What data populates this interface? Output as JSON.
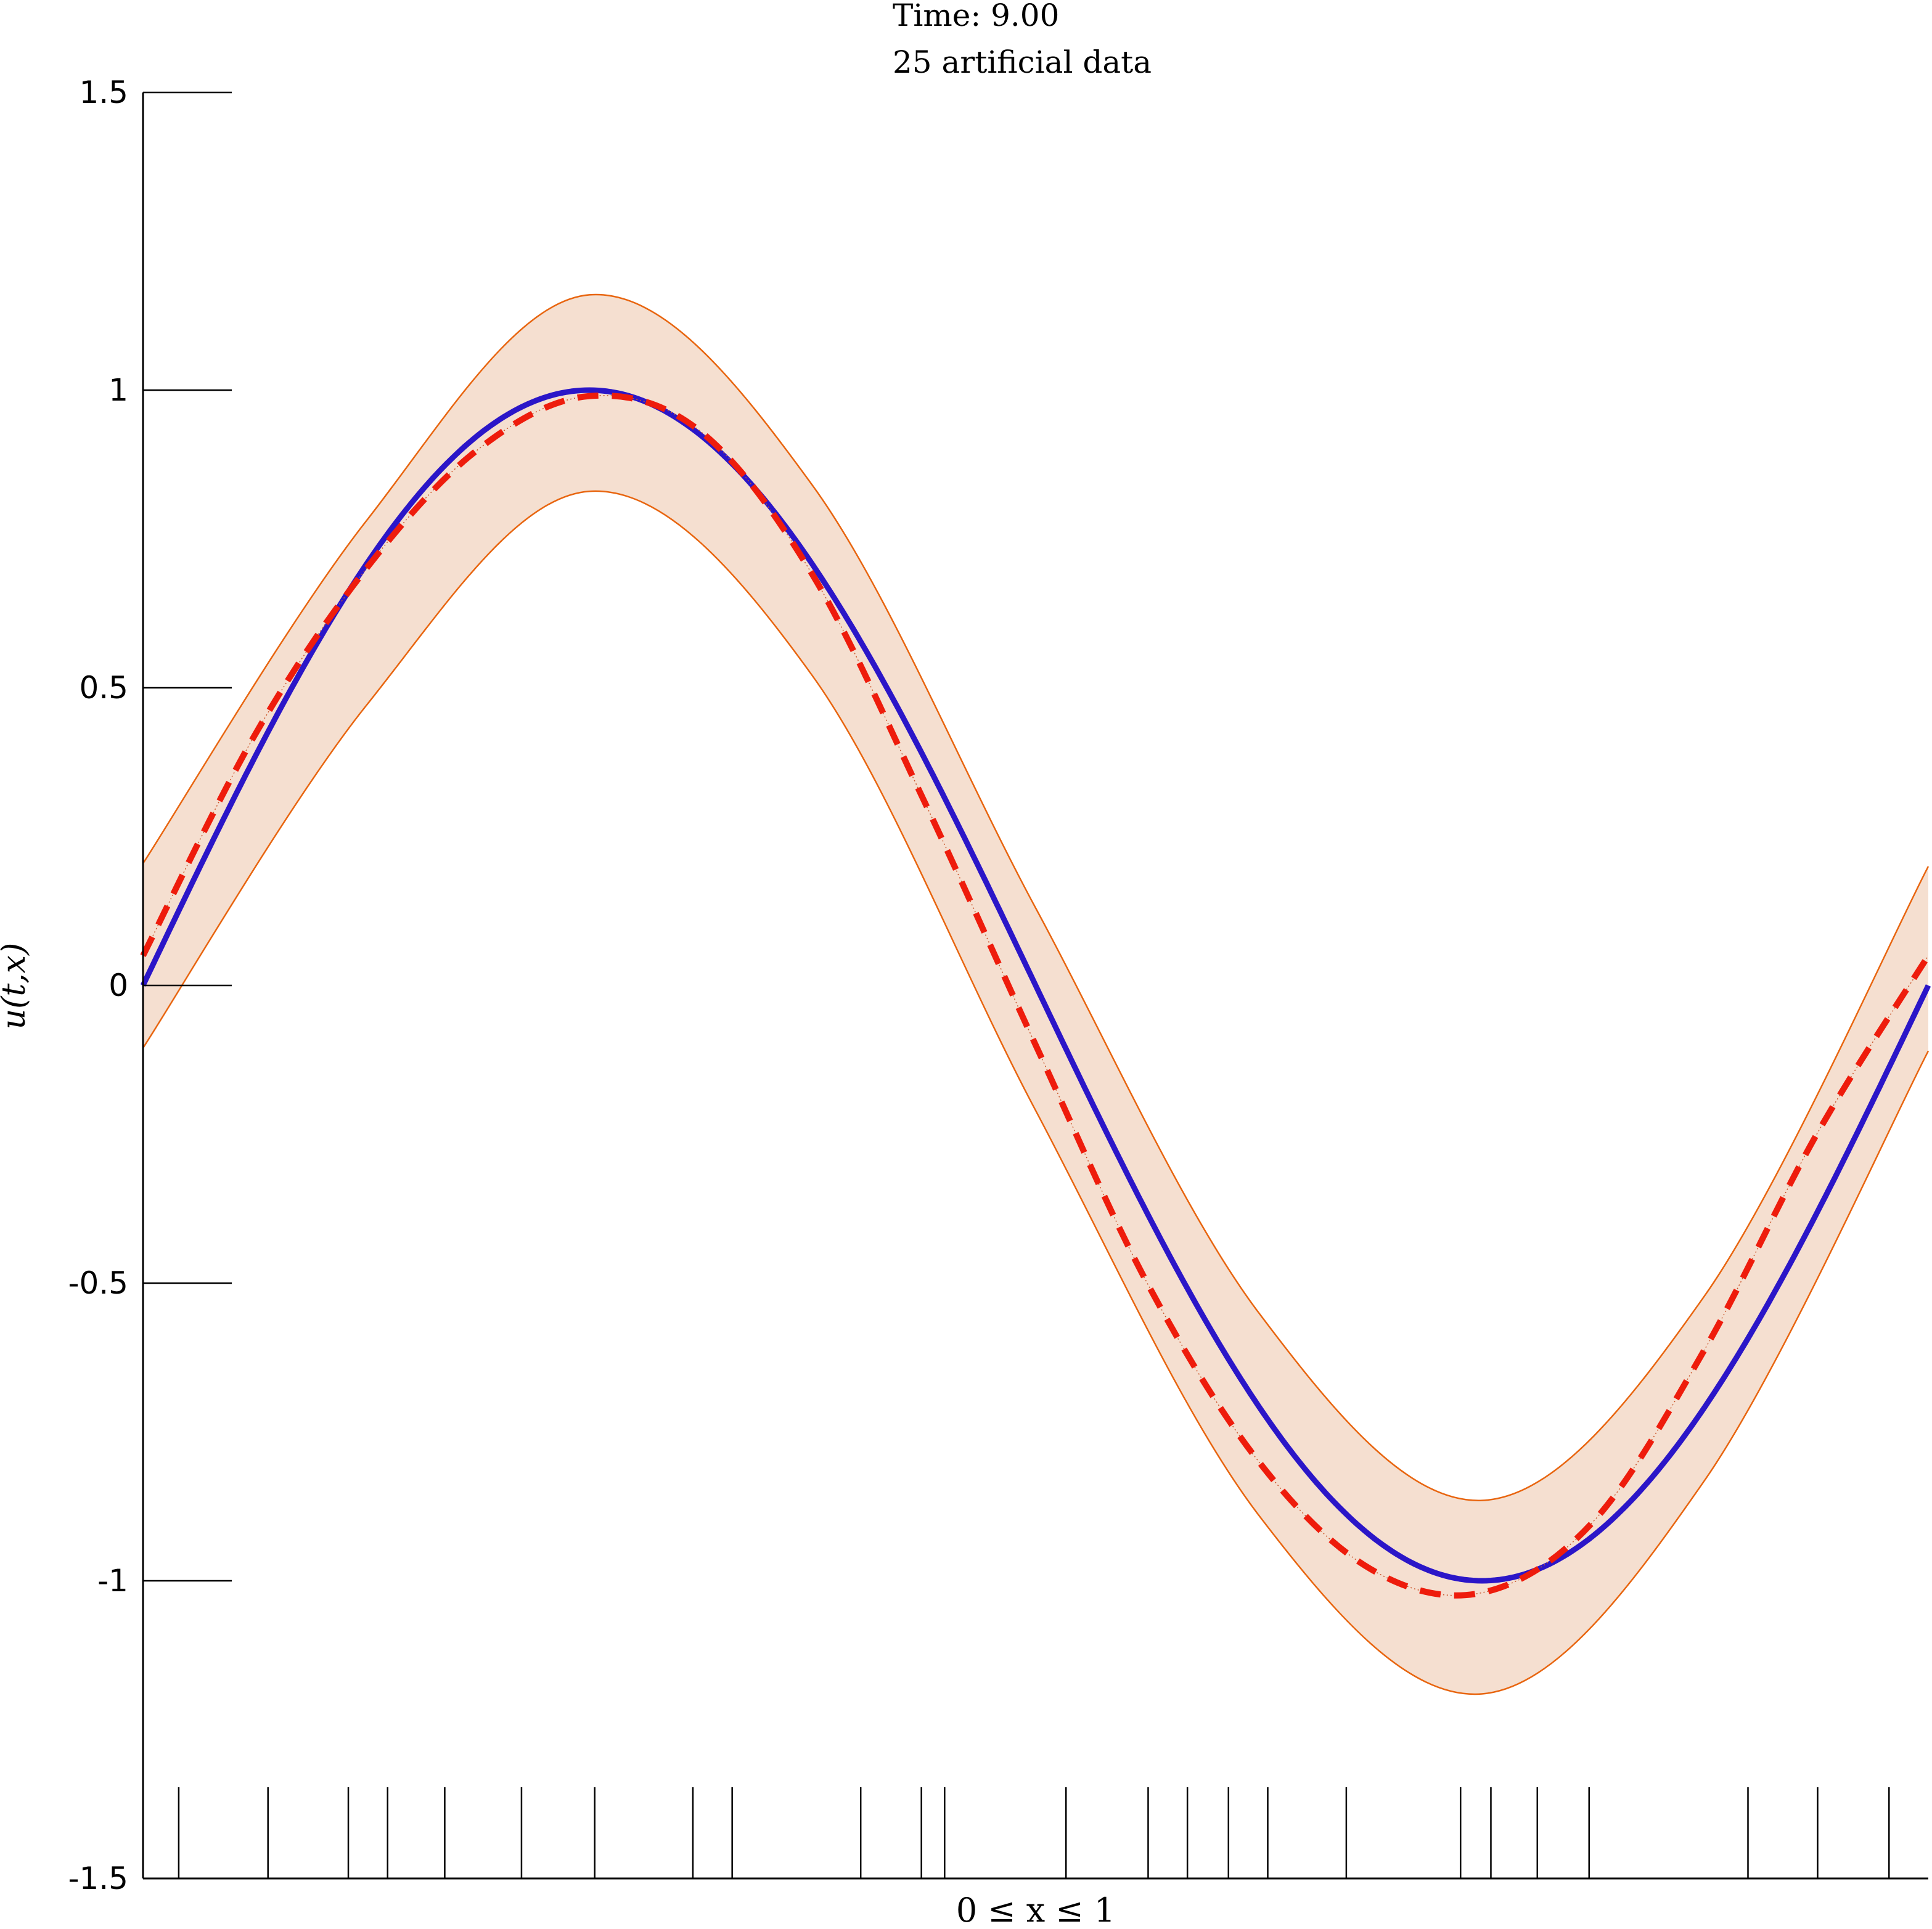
{
  "chart_data": {
    "type": "line",
    "title_lines": [
      "Time: 9.00",
      "25 artificial data"
    ],
    "xlabel": "0 ≤ x ≤ 1",
    "ylabel": "u(t,x)",
    "xlim": [
      0,
      1
    ],
    "ylim": [
      -1.5,
      1.5
    ],
    "y_ticks": [
      1.5,
      1,
      0.5,
      0,
      -0.5,
      -1,
      -1.5
    ],
    "y_tick_labels": [
      "1.5",
      "1",
      "0.5",
      "0",
      "-0.5",
      "-1",
      "-1.5"
    ],
    "grid": false,
    "legend": "none",
    "band": {
      "color": "#f5dfd0",
      "edge_color": "#e8650f",
      "x": [
        0,
        0.125,
        0.25,
        0.375,
        0.5,
        0.625,
        0.75,
        0.875,
        1
      ],
      "upper": [
        0.205,
        0.78,
        1.16,
        0.84,
        0.13,
        -0.55,
        -0.865,
        -0.52,
        0.2
      ],
      "lower": [
        -0.105,
        0.47,
        0.83,
        0.52,
        -0.21,
        -0.89,
        -1.19,
        -0.83,
        -0.11
      ]
    },
    "series": [
      {
        "color": "#2b16c8",
        "style": "solid",
        "function": "sin(2*pi*x)"
      },
      {
        "color": "#ee1c0c",
        "style": "dashed",
        "x": [
          0,
          0.0625,
          0.125,
          0.1875,
          0.25,
          0.3125,
          0.375,
          0.4375,
          0.5,
          0.5625,
          0.625,
          0.6875,
          0.75,
          0.8125,
          0.875,
          0.9375,
          1
        ],
        "y": [
          0.05,
          0.42,
          0.7,
          0.9,
          0.99,
          0.93,
          0.69,
          0.31,
          -0.1,
          -0.5,
          -0.8,
          -0.98,
          -1.02,
          -0.9,
          -0.61,
          -0.25,
          0.05
        ]
      }
    ],
    "data_x": [
      0.02,
      0.07,
      0.115,
      0.137,
      0.169,
      0.212,
      0.253,
      0.308,
      0.33,
      0.402,
      0.436,
      0.449,
      0.517,
      0.563,
      0.585,
      0.608,
      0.63,
      0.674,
      0.738,
      0.755,
      0.781,
      0.81,
      0.899,
      0.938,
      0.978
    ]
  }
}
